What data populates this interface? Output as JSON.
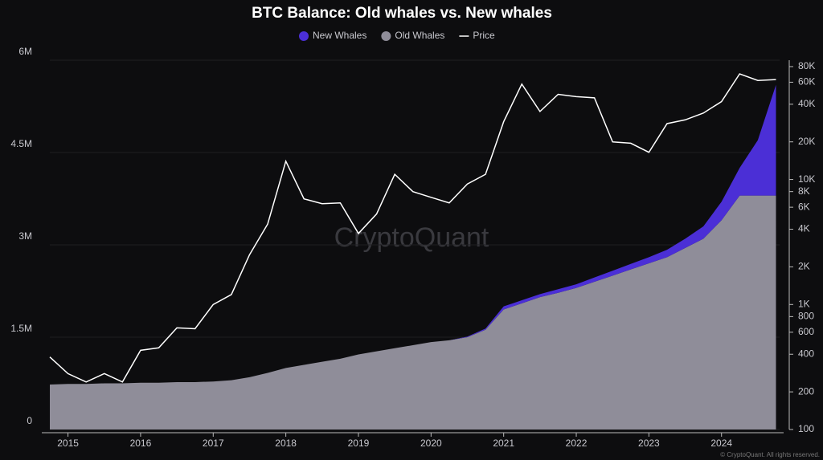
{
  "chart_data": {
    "type": "stacked_area_line",
    "title": "BTC Balance: Old whales vs. New whales",
    "watermark": "CryptoQuant",
    "footer": "© CryptoQuant. All rights reserved.",
    "x": [
      2014.75,
      2015,
      2015.25,
      2015.5,
      2015.75,
      2016,
      2016.25,
      2016.5,
      2016.75,
      2017,
      2017.25,
      2017.5,
      2017.75,
      2018,
      2018.25,
      2018.5,
      2018.75,
      2019,
      2019.25,
      2019.5,
      2019.75,
      2020,
      2020.25,
      2020.5,
      2020.75,
      2021,
      2021.25,
      2021.5,
      2021.75,
      2022,
      2022.25,
      2022.5,
      2022.75,
      2023,
      2023.25,
      2023.5,
      2023.75,
      2024,
      2024.25,
      2024.5,
      2024.75
    ],
    "xlim": [
      2014.75,
      2024.8
    ],
    "xticks": [
      2015,
      2016,
      2017,
      2018,
      2019,
      2020,
      2021,
      2022,
      2023,
      2024
    ],
    "ylim": [
      0,
      6000000
    ],
    "yticks": [
      {
        "value": 0,
        "label": "0"
      },
      {
        "value": 1500000,
        "label": "1.5M"
      },
      {
        "value": 3000000,
        "label": "3M"
      },
      {
        "value": 4500000,
        "label": "4.5M"
      },
      {
        "value": 6000000,
        "label": "6M"
      }
    ],
    "y2lim": [
      100,
      90000
    ],
    "y2log": true,
    "y2ticks": [
      100,
      200,
      400,
      600,
      800,
      {
        "value": 1000,
        "label": "1K"
      },
      {
        "value": 2000,
        "label": "2K"
      },
      {
        "value": 4000,
        "label": "4K"
      },
      {
        "value": 6000,
        "label": "6K"
      },
      {
        "value": 8000,
        "label": "8K"
      },
      {
        "value": 10000,
        "label": "10K"
      },
      {
        "value": 20000,
        "label": "20K"
      },
      {
        "value": 40000,
        "label": "40K"
      },
      {
        "value": 60000,
        "label": "60K"
      },
      {
        "value": 80000,
        "label": "80K"
      }
    ],
    "grid": true,
    "series": [
      {
        "name": "Old Whales",
        "color": "#8f8d99",
        "kind": "area",
        "values": [
          730000,
          740000,
          740000,
          750000,
          750000,
          760000,
          760000,
          770000,
          770000,
          780000,
          800000,
          850000,
          920000,
          1000000,
          1050000,
          1100000,
          1150000,
          1220000,
          1270000,
          1320000,
          1370000,
          1420000,
          1450000,
          1500000,
          1620000,
          1950000,
          2050000,
          2150000,
          2220000,
          2300000,
          2400000,
          2500000,
          2600000,
          2700000,
          2800000,
          2950000,
          3100000,
          3400000,
          3800000,
          3800000,
          3800000
        ]
      },
      {
        "name": "New Whales",
        "color": "#4b2fd6",
        "kind": "area",
        "values": [
          0,
          0,
          0,
          0,
          0,
          0,
          0,
          0,
          0,
          0,
          0,
          0,
          0,
          0,
          0,
          0,
          0,
          0,
          0,
          0,
          0,
          0,
          0,
          10000,
          20000,
          50000,
          50000,
          50000,
          60000,
          60000,
          70000,
          80000,
          90000,
          100000,
          120000,
          150000,
          200000,
          300000,
          450000,
          900000,
          1800000
        ]
      },
      {
        "name": "Price",
        "color": "#ffffff",
        "kind": "line",
        "axis": "y2",
        "values": [
          380,
          280,
          240,
          280,
          240,
          430,
          450,
          650,
          640,
          1000,
          1200,
          2500,
          4400,
          14000,
          7000,
          6400,
          6500,
          3700,
          5300,
          11000,
          8000,
          7200,
          6500,
          9200,
          11000,
          29000,
          58000,
          35000,
          48000,
          46000,
          45000,
          20000,
          19500,
          16500,
          28000,
          30000,
          34000,
          42000,
          70000,
          62000,
          63000
        ]
      }
    ],
    "legend_order": [
      1,
      0,
      2
    ]
  }
}
